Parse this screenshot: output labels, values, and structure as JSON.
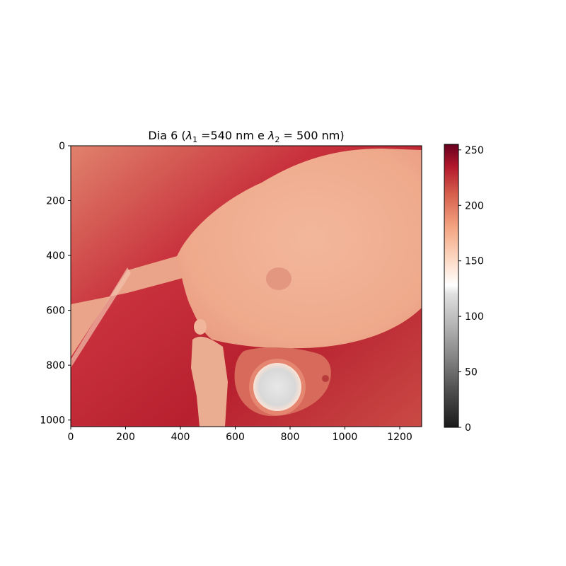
{
  "chart_data": {
    "type": "heatmap",
    "title": "Dia 6 (λ1 =540 nm e λ2 = 500 nm)",
    "title_parts": {
      "prefix": "Dia 6 (",
      "sym1": "λ",
      "sub1": "1",
      "mid": " =540 nm e ",
      "sym2": "λ",
      "sub2": "2",
      "suffix": " = 500 nm)"
    },
    "image_width": 1280,
    "image_height": 1024,
    "xlim": [
      0,
      1280
    ],
    "ylim": [
      1024,
      0
    ],
    "x_ticks": [
      0,
      200,
      400,
      600,
      800,
      1000,
      1200
    ],
    "y_ticks": [
      0,
      200,
      400,
      600,
      800,
      1000
    ],
    "colormap": "RdGy_r",
    "colorbar": {
      "range": [
        0,
        255
      ],
      "ticks": [
        0,
        50,
        100,
        150,
        200,
        250
      ],
      "stops": [
        {
          "v": 0,
          "color": "#1a1a1a"
        },
        {
          "v": 32,
          "color": "#4d4d4d"
        },
        {
          "v": 64,
          "color": "#878787"
        },
        {
          "v": 96,
          "color": "#bababa"
        },
        {
          "v": 120,
          "color": "#e0e0e0"
        },
        {
          "v": 128,
          "color": "#ffffff"
        },
        {
          "v": 150,
          "color": "#fddbc7"
        },
        {
          "v": 180,
          "color": "#f4a582"
        },
        {
          "v": 210,
          "color": "#d6604d"
        },
        {
          "v": 235,
          "color": "#b2182b"
        },
        {
          "v": 255,
          "color": "#67001f"
        }
      ]
    },
    "regions": {
      "background_value": 225,
      "body_value": 182,
      "bright_spot_value": 125,
      "holder_value": 212
    },
    "grid": false
  }
}
